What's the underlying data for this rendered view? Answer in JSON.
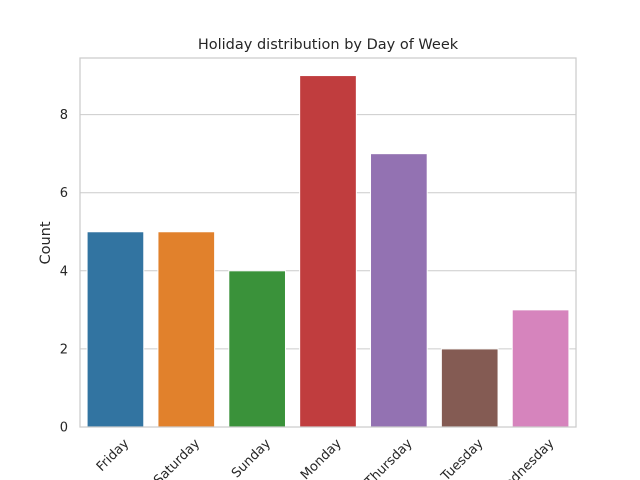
{
  "chart_data": {
    "type": "bar",
    "title": "Holiday distribution by Day of Week",
    "xlabel": "",
    "ylabel": "Count",
    "categories": [
      "Friday",
      "Saturday",
      "Sunday",
      "Monday",
      "Thursday",
      "Tuesday",
      "Wednesday"
    ],
    "values": [
      5,
      5,
      4,
      9,
      7,
      2,
      3
    ],
    "colors": [
      "#3274a1",
      "#e1812c",
      "#3a923a",
      "#c03d3e",
      "#9372b2",
      "#845b53",
      "#d684bd"
    ],
    "yticks": [
      0,
      2,
      4,
      6,
      8
    ],
    "ylim": [
      0,
      9.45
    ],
    "grid": "y"
  }
}
